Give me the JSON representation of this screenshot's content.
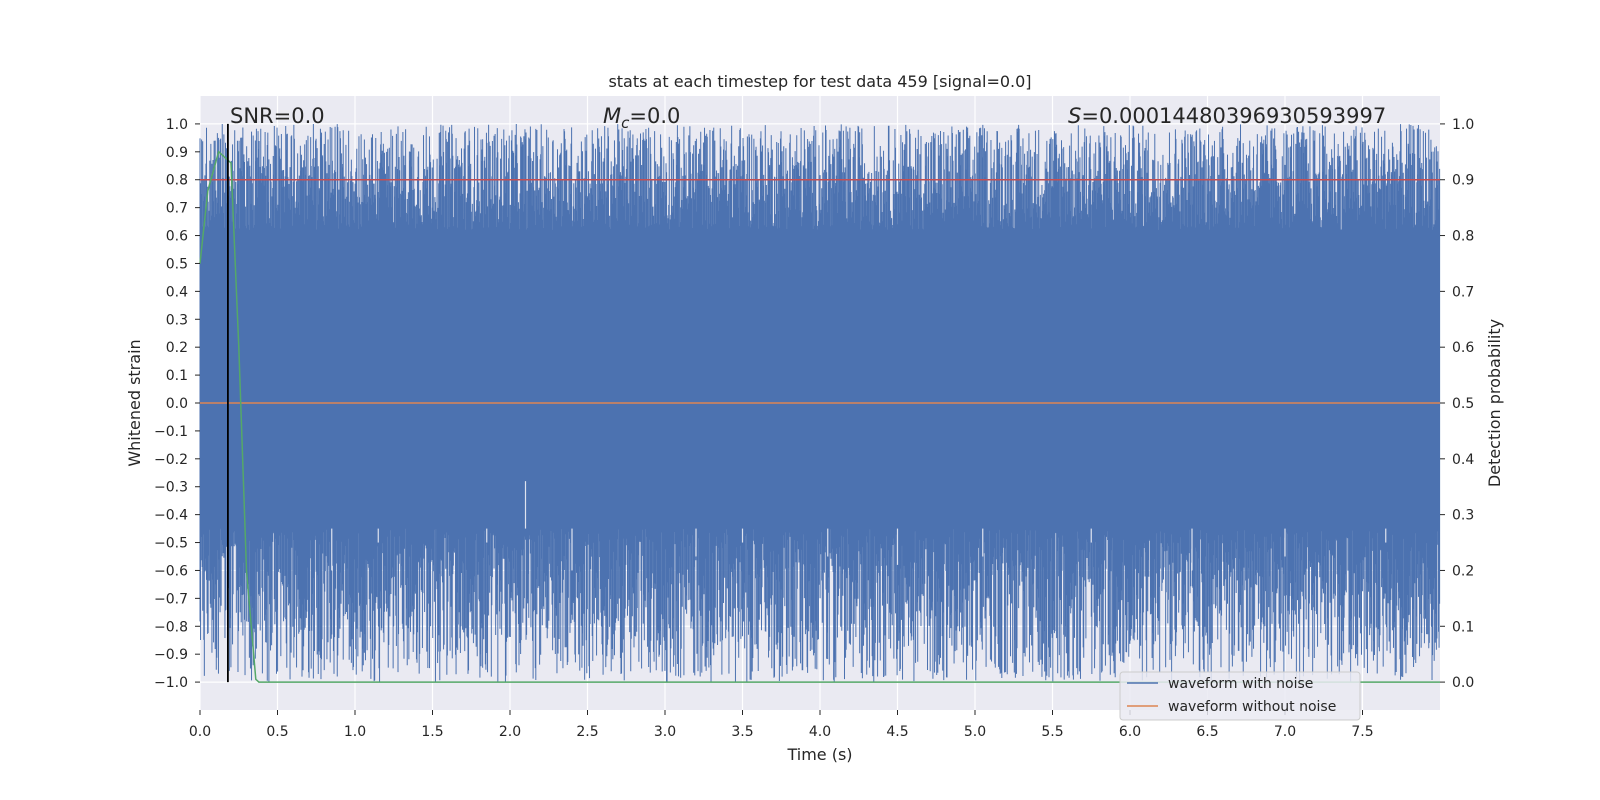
{
  "chart_data": {
    "type": "line",
    "title": "stats at each timestep for test data 459 [signal=0.0]",
    "xlabel": "Time (s)",
    "ylabel": "Whitened strain",
    "ylabel_right": "Detection probability",
    "xlim": [
      0.0,
      8.0
    ],
    "ylim": [
      -1.1,
      1.1
    ],
    "ylim_right": [
      -0.05,
      1.05
    ],
    "xticks": [
      "0.0",
      "0.5",
      "1.0",
      "1.5",
      "2.0",
      "2.5",
      "3.0",
      "3.5",
      "4.0",
      "4.5",
      "5.0",
      "5.5",
      "6.0",
      "6.5",
      "7.0",
      "7.5"
    ],
    "yticks": [
      "1.0",
      "0.9",
      "0.8",
      "0.7",
      "0.6",
      "0.5",
      "0.4",
      "0.3",
      "0.2",
      "0.1",
      "0.0",
      "−0.1",
      "−0.2",
      "−0.3",
      "−0.4",
      "−0.5",
      "−0.6",
      "−0.7",
      "−0.8",
      "−0.9",
      "−1.0"
    ],
    "yticks_right": [
      "1.0",
      "0.9",
      "0.8",
      "0.7",
      "0.6",
      "0.5",
      "0.4",
      "0.3",
      "0.2",
      "0.1",
      "0.0"
    ],
    "grid": true,
    "legend_position": "lower-right",
    "annotations": {
      "snr_label": "SNR=0.0",
      "mc_symbol": "M",
      "mc_subscript": "c",
      "mc_value": "=0.0",
      "s_symbol": "S",
      "s_value": "=0.00014480396930593997"
    },
    "series": [
      {
        "name": "waveform with noise",
        "color": "#4c72b0",
        "description_range": [
          -1.0,
          1.0
        ],
        "upper_dips": [
          [
            0.55,
            0.35
          ],
          [
            0.85,
            0.4
          ],
          [
            1.0,
            0.6
          ],
          [
            1.5,
            0.7
          ],
          [
            2.05,
            0.6
          ],
          [
            2.3,
            0.4
          ],
          [
            3.1,
            0.55
          ],
          [
            3.2,
            0.6
          ],
          [
            3.75,
            0.55
          ],
          [
            3.95,
            0.4
          ],
          [
            4.05,
            0.6
          ],
          [
            4.25,
            0.2
          ],
          [
            4.45,
            0.25
          ],
          [
            5.2,
            0.35
          ],
          [
            5.4,
            0.38
          ],
          [
            6.3,
            0.55
          ],
          [
            7.2,
            0.45
          ],
          [
            7.85,
            0.5
          ]
        ],
        "lower_spikes": [
          [
            0.85,
            -0.6
          ],
          [
            1.15,
            -0.5
          ],
          [
            1.85,
            -0.5
          ],
          [
            2.1,
            -0.28
          ],
          [
            2.4,
            -0.6
          ],
          [
            3.2,
            -0.55
          ],
          [
            3.5,
            -0.5
          ],
          [
            4.05,
            -0.55
          ],
          [
            4.5,
            -0.58
          ],
          [
            5.05,
            -0.55
          ],
          [
            5.75,
            -0.5
          ],
          [
            6.4,
            -0.6
          ],
          [
            7.0,
            -0.55
          ],
          [
            7.65,
            -0.5
          ]
        ]
      },
      {
        "name": "waveform without noise",
        "color": "#dd8452",
        "x": [
          0.0,
          8.0
        ],
        "y": [
          0.0,
          0.0
        ]
      },
      {
        "axis": "right",
        "color": "#c44e52",
        "x": [
          0.0,
          8.0
        ],
        "y": [
          0.9,
          0.9
        ]
      },
      {
        "axis": "right",
        "color": "#55a868",
        "x": [
          0.0,
          0.05,
          0.1,
          0.12,
          0.2,
          0.25,
          0.3,
          0.36,
          0.38,
          8.0
        ],
        "y": [
          0.75,
          0.88,
          0.93,
          0.95,
          0.93,
          0.6,
          0.2,
          0.005,
          0.0,
          0.0
        ]
      },
      {
        "axis": "vline",
        "color": "#000000",
        "x": [
          0.18,
          0.18
        ],
        "y": [
          -1.0,
          1.0
        ]
      }
    ]
  }
}
